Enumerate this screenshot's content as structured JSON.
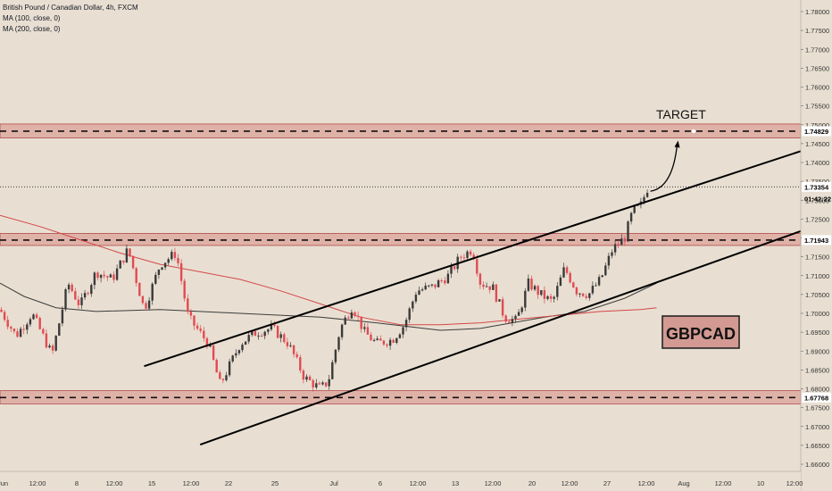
{
  "legend": {
    "title": "British Pound / Canadian Dollar, 4h, FXCM",
    "ma100": "MA (100, close, 0)",
    "ma200": "MA (200, close, 0)"
  },
  "annotations": {
    "target_label": "TARGET",
    "symbol_label": "GBPCAD"
  },
  "colors": {
    "background": "#e8dfd2",
    "zone_fill": "#dca39a",
    "zone_border": "#b34b4b",
    "up_candle": "#3a3a3a",
    "down_candle": "#e04b52",
    "ma100": "#3c3c3c",
    "ma200": "#d44848"
  },
  "chart_data": {
    "type": "candlestick",
    "symbol": "GBPCAD",
    "interval": "4h",
    "ylim": [
      1.6575,
      1.7825
    ],
    "y_ticks": [
      "1.78000",
      "1.77500",
      "1.77000",
      "1.76500",
      "1.76000",
      "1.75500",
      "1.75000",
      "1.74500",
      "1.74000",
      "1.73500",
      "1.73000",
      "1.72500",
      "1.72000",
      "1.71500",
      "1.71000",
      "1.70500",
      "1.70000",
      "1.69500",
      "1.69000",
      "1.68500",
      "1.68000",
      "1.67500",
      "1.67000",
      "1.66500",
      "1.66000"
    ],
    "x_ticks": [
      "Jun",
      "12:00",
      "8",
      "12:00",
      "15",
      "12:00",
      "22",
      "25",
      "Jul",
      "6",
      "12:00",
      "13",
      "12:00",
      "20",
      "12:00",
      "27",
      "12:00",
      "Aug",
      "12:00",
      "10",
      "12:00"
    ],
    "price_labels": {
      "resistance": "1.74829",
      "current": "1.73354",
      "countdown": "01:42:22",
      "mid_support": "1.71943",
      "support": "1.67768"
    },
    "zones": [
      {
        "name": "resistance",
        "low": 1.7465,
        "high": 1.7502,
        "level": 1.74829
      },
      {
        "name": "mid-support",
        "low": 1.718,
        "high": 1.7212,
        "level": 1.71943
      },
      {
        "name": "support",
        "low": 1.676,
        "high": 1.6795,
        "level": 1.67768
      }
    ],
    "channel": {
      "upper": {
        "from": [
          0.18,
          1.686
        ],
        "to": [
          1.0,
          1.743
        ]
      },
      "lower": {
        "from": [
          0.25,
          1.6652
        ],
        "to": [
          1.0,
          1.7218
        ]
      }
    },
    "projection_target": 1.7458,
    "series": [
      {
        "name": "MA (100, close, 0)",
        "points": [
          [
            0,
            1.708
          ],
          [
            0.03,
            1.7045
          ],
          [
            0.07,
            1.7015
          ],
          [
            0.12,
            1.7005
          ],
          [
            0.2,
            1.701
          ],
          [
            0.3,
            1.7
          ],
          [
            0.4,
            1.699
          ],
          [
            0.47,
            1.6975
          ],
          [
            0.55,
            1.6955
          ],
          [
            0.6,
            1.696
          ],
          [
            0.68,
            1.699
          ],
          [
            0.73,
            1.7005
          ],
          [
            0.78,
            1.704
          ],
          [
            0.82,
            1.708
          ]
        ]
      },
      {
        "name": "MA (200, close, 0)",
        "points": [
          [
            0,
            1.726
          ],
          [
            0.05,
            1.723
          ],
          [
            0.1,
            1.7195
          ],
          [
            0.15,
            1.716
          ],
          [
            0.2,
            1.713
          ],
          [
            0.25,
            1.711
          ],
          [
            0.3,
            1.709
          ],
          [
            0.35,
            1.706
          ],
          [
            0.4,
            1.7025
          ],
          [
            0.45,
            1.699
          ],
          [
            0.5,
            1.697
          ],
          [
            0.55,
            1.697
          ],
          [
            0.6,
            1.6975
          ],
          [
            0.65,
            1.6985
          ],
          [
            0.7,
            1.6995
          ],
          [
            0.75,
            1.7005
          ],
          [
            0.8,
            1.701
          ],
          [
            0.82,
            1.7015
          ]
        ]
      }
    ],
    "candle_path": [
      [
        0,
        1.701
      ],
      [
        0.02,
        1.694
      ],
      [
        0.04,
        1.7
      ],
      [
        0.065,
        1.689
      ],
      [
        0.085,
        1.708
      ],
      [
        0.1,
        1.702
      ],
      [
        0.12,
        1.711
      ],
      [
        0.14,
        1.709
      ],
      [
        0.16,
        1.717
      ],
      [
        0.18,
        1.701
      ],
      [
        0.2,
        1.713
      ],
      [
        0.22,
        1.716
      ],
      [
        0.235,
        1.699
      ],
      [
        0.26,
        1.692
      ],
      [
        0.275,
        1.681
      ],
      [
        0.3,
        1.692
      ],
      [
        0.32,
        1.695
      ],
      [
        0.34,
        1.696
      ],
      [
        0.36,
        1.692
      ],
      [
        0.38,
        1.683
      ],
      [
        0.4,
        1.68
      ],
      [
        0.41,
        1.682
      ],
      [
        0.425,
        1.696
      ],
      [
        0.44,
        1.702
      ],
      [
        0.455,
        1.695
      ],
      [
        0.47,
        1.692
      ],
      [
        0.49,
        1.693
      ],
      [
        0.505,
        1.697
      ],
      [
        0.52,
        1.706
      ],
      [
        0.54,
        1.707
      ],
      [
        0.56,
        1.71
      ],
      [
        0.575,
        1.715
      ],
      [
        0.59,
        1.717
      ],
      [
        0.6,
        1.708
      ],
      [
        0.615,
        1.707
      ],
      [
        0.63,
        1.699
      ],
      [
        0.645,
        1.698
      ],
      [
        0.66,
        1.708
      ],
      [
        0.675,
        1.705
      ],
      [
        0.69,
        1.703
      ],
      [
        0.705,
        1.712
      ],
      [
        0.72,
        1.706
      ],
      [
        0.735,
        1.705
      ],
      [
        0.75,
        1.709
      ],
      [
        0.765,
        1.717
      ],
      [
        0.78,
        1.72
      ],
      [
        0.79,
        1.727
      ],
      [
        0.8,
        1.7285
      ],
      [
        0.81,
        1.734
      ]
    ],
    "time_fraction_last": 0.81
  }
}
